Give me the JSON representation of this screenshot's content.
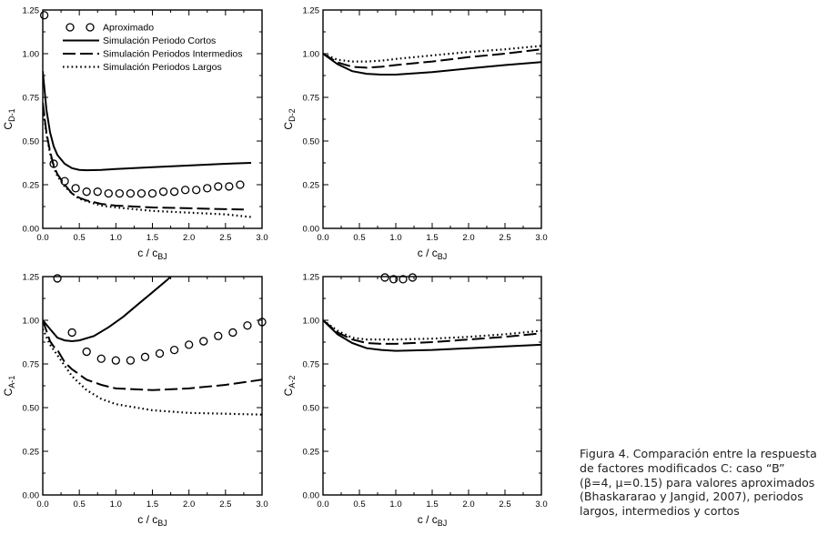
{
  "caption": "Figura 4. Comparación entre la respuesta\nde factores modificados C: caso “B”\n(β=4, μ=0.15) para valores aproximados\n(Bhaskararao y Jangid, 2007), periodos\nlargos, intermedios y cortos",
  "legend": {
    "entries": [
      {
        "label": "Aproximado",
        "style": "marker"
      },
      {
        "label": "Simulación Periodo Cortos",
        "style": "solid"
      },
      {
        "label": "Simulación Periodos Intermedios",
        "style": "dashed"
      },
      {
        "label": "Simulación Periodos Largos",
        "style": "dotted"
      }
    ]
  },
  "chart_data": [
    {
      "id": "cd1",
      "type": "line",
      "ylabel_main": "C",
      "ylabel_sub": "D-1",
      "xlabel_main": "c / c",
      "xlabel_sub": "BJ",
      "xlim": [
        0,
        3.0
      ],
      "ylim": [
        0,
        1.25
      ],
      "xticks": [
        "0.0",
        "0.5",
        "1.0",
        "1.5",
        "2.0",
        "2.5",
        "3.0"
      ],
      "yticks": [
        "0.00",
        "0.25",
        "0.50",
        "0.75",
        "1.00",
        "1.25"
      ],
      "series": [
        {
          "style": "marker",
          "x": [
            0.02,
            0.15,
            0.3,
            0.45,
            0.6,
            0.75,
            0.9,
            1.05,
            1.2,
            1.35,
            1.5,
            1.65,
            1.8,
            1.95,
            2.1,
            2.25,
            2.4,
            2.55,
            2.7
          ],
          "y": [
            1.22,
            0.37,
            0.27,
            0.23,
            0.21,
            0.21,
            0.2,
            0.2,
            0.2,
            0.2,
            0.2,
            0.21,
            0.21,
            0.22,
            0.22,
            0.23,
            0.24,
            0.24,
            0.25
          ]
        },
        {
          "style": "solid",
          "x": [
            0.0,
            0.05,
            0.1,
            0.15,
            0.2,
            0.3,
            0.4,
            0.5,
            0.6,
            0.8,
            1.0,
            1.5,
            2.0,
            2.5,
            2.85
          ],
          "y": [
            0.9,
            0.68,
            0.55,
            0.47,
            0.42,
            0.37,
            0.345,
            0.335,
            0.333,
            0.335,
            0.34,
            0.35,
            0.36,
            0.37,
            0.375
          ]
        },
        {
          "style": "dashed",
          "x": [
            0.0,
            0.05,
            0.1,
            0.15,
            0.2,
            0.3,
            0.4,
            0.5,
            0.6,
            0.8,
            1.0,
            1.5,
            2.0,
            2.5,
            2.75
          ],
          "y": [
            0.72,
            0.55,
            0.44,
            0.36,
            0.31,
            0.25,
            0.2,
            0.175,
            0.16,
            0.14,
            0.13,
            0.12,
            0.115,
            0.11,
            0.108
          ]
        },
        {
          "style": "dotted",
          "x": [
            0.0,
            0.05,
            0.1,
            0.15,
            0.2,
            0.3,
            0.4,
            0.5,
            0.6,
            0.8,
            1.0,
            1.5,
            2.0,
            2.5,
            2.85
          ],
          "y": [
            0.7,
            0.54,
            0.43,
            0.35,
            0.3,
            0.24,
            0.2,
            0.17,
            0.155,
            0.13,
            0.12,
            0.1,
            0.09,
            0.08,
            0.065
          ]
        }
      ]
    },
    {
      "id": "cd2",
      "type": "line",
      "ylabel_main": "C",
      "ylabel_sub": "D-2",
      "xlabel_main": "c / c",
      "xlabel_sub": "BJ",
      "xlim": [
        0,
        3.0
      ],
      "ylim": [
        0,
        1.25
      ],
      "xticks": [
        "0.0",
        "0.5",
        "1.0",
        "1.5",
        "2.0",
        "2.5",
        "3.0"
      ],
      "yticks": [
        "0.00",
        "0.25",
        "0.50",
        "0.75",
        "1.00",
        "1.25"
      ],
      "series": [
        {
          "style": "solid",
          "x": [
            0.0,
            0.2,
            0.4,
            0.6,
            0.8,
            1.0,
            1.5,
            2.0,
            2.5,
            3.0
          ],
          "y": [
            1.0,
            0.94,
            0.9,
            0.885,
            0.88,
            0.88,
            0.895,
            0.915,
            0.935,
            0.952
          ]
        },
        {
          "style": "dashed",
          "x": [
            0.0,
            0.2,
            0.4,
            0.6,
            0.8,
            1.0,
            1.5,
            2.0,
            2.5,
            3.0
          ],
          "y": [
            1.0,
            0.95,
            0.925,
            0.92,
            0.925,
            0.935,
            0.955,
            0.98,
            1.0,
            1.025
          ]
        },
        {
          "style": "dotted",
          "x": [
            0.0,
            0.2,
            0.4,
            0.6,
            0.8,
            1.0,
            1.5,
            2.0,
            2.5,
            3.0
          ],
          "y": [
            1.0,
            0.965,
            0.955,
            0.955,
            0.96,
            0.97,
            0.99,
            1.01,
            1.025,
            1.045
          ]
        }
      ]
    },
    {
      "id": "ca1",
      "type": "line",
      "ylabel_main": "C",
      "ylabel_sub": "A-1",
      "xlabel_main": "c / c",
      "xlabel_sub": "BJ",
      "xlim": [
        0,
        3.0
      ],
      "ylim": [
        0,
        1.25
      ],
      "xticks": [
        "0.0",
        "0.5",
        "1.0",
        "1.5",
        "2.0",
        "2.5",
        "3.0"
      ],
      "yticks": [
        "0.00",
        "0.25",
        "0.50",
        "0.75",
        "1.00",
        "1.25"
      ],
      "series": [
        {
          "style": "marker",
          "x": [
            0.2,
            0.4,
            0.6,
            0.8,
            1.0,
            1.2,
            1.4,
            1.6,
            1.8,
            2.0,
            2.2,
            2.4,
            2.6,
            2.8,
            3.0
          ],
          "y": [
            1.24,
            0.93,
            0.82,
            0.78,
            0.77,
            0.77,
            0.79,
            0.81,
            0.83,
            0.86,
            0.88,
            0.91,
            0.93,
            0.97,
            0.99
          ]
        },
        {
          "style": "solid",
          "x": [
            0.0,
            0.1,
            0.2,
            0.3,
            0.4,
            0.5,
            0.7,
            0.9,
            1.1,
            1.3,
            1.5,
            1.7,
            1.75
          ],
          "y": [
            1.0,
            0.95,
            0.9,
            0.885,
            0.88,
            0.885,
            0.91,
            0.96,
            1.02,
            1.09,
            1.16,
            1.23,
            1.25
          ]
        },
        {
          "style": "dashed",
          "x": [
            0.0,
            0.1,
            0.15,
            0.2,
            0.3,
            0.4,
            0.6,
            0.8,
            1.0,
            1.5,
            2.0,
            2.5,
            3.0
          ],
          "y": [
            1.0,
            0.88,
            0.85,
            0.83,
            0.76,
            0.72,
            0.66,
            0.63,
            0.61,
            0.6,
            0.61,
            0.63,
            0.66
          ]
        },
        {
          "style": "dotted",
          "x": [
            0.0,
            0.1,
            0.2,
            0.3,
            0.4,
            0.6,
            0.8,
            1.0,
            1.5,
            2.0,
            2.5,
            3.0
          ],
          "y": [
            0.95,
            0.86,
            0.8,
            0.74,
            0.68,
            0.6,
            0.55,
            0.52,
            0.485,
            0.47,
            0.465,
            0.46
          ]
        }
      ]
    },
    {
      "id": "ca2",
      "type": "line",
      "ylabel_main": "C",
      "ylabel_sub": "A-2",
      "xlabel_main": "c / c",
      "xlabel_sub": "BJ",
      "xlim": [
        0,
        3.0
      ],
      "ylim": [
        0,
        1.25
      ],
      "xticks": [
        "0.0",
        "0.5",
        "1.0",
        "1.5",
        "2.0",
        "2.5",
        "3.0"
      ],
      "yticks": [
        "0.00",
        "0.25",
        "0.50",
        "0.75",
        "1.00",
        "1.25"
      ],
      "series": [
        {
          "style": "marker",
          "x": [
            0.85,
            0.97,
            1.1,
            1.23
          ],
          "y": [
            1.245,
            1.235,
            1.235,
            1.245
          ]
        },
        {
          "style": "solid",
          "x": [
            0.0,
            0.2,
            0.4,
            0.6,
            0.8,
            1.0,
            1.5,
            2.0,
            2.5,
            3.0
          ],
          "y": [
            1.0,
            0.92,
            0.87,
            0.84,
            0.83,
            0.825,
            0.83,
            0.84,
            0.85,
            0.86
          ]
        },
        {
          "style": "dashed",
          "x": [
            0.0,
            0.2,
            0.4,
            0.6,
            0.8,
            1.0,
            1.5,
            2.0,
            2.5,
            3.0
          ],
          "y": [
            1.0,
            0.93,
            0.89,
            0.87,
            0.865,
            0.865,
            0.875,
            0.89,
            0.905,
            0.925
          ]
        },
        {
          "style": "dotted",
          "x": [
            0.0,
            0.2,
            0.4,
            0.6,
            0.8,
            1.0,
            1.5,
            2.0,
            2.5,
            3.0
          ],
          "y": [
            1.0,
            0.94,
            0.9,
            0.89,
            0.89,
            0.89,
            0.895,
            0.905,
            0.92,
            0.94
          ]
        }
      ]
    }
  ]
}
